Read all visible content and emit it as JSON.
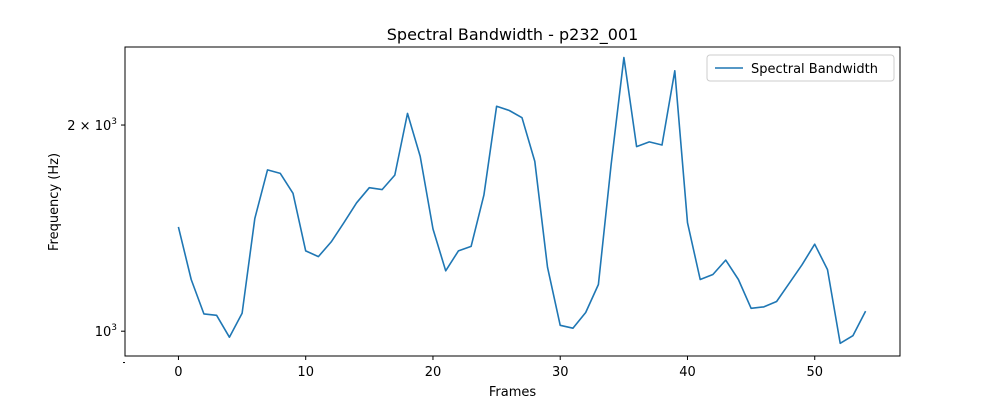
{
  "chart_data": {
    "type": "line",
    "title": "Spectral Bandwidth - p232_001",
    "xlabel": "Frames",
    "ylabel": "Frequency (Hz)",
    "y_scale": "log",
    "xlim": [
      -4.2,
      56.7
    ],
    "ylim": [
      920,
      2600
    ],
    "x_ticks": [
      0,
      10,
      20,
      30,
      40,
      50
    ],
    "x_tick_labels": [
      "0",
      "10",
      "20",
      "30",
      "40",
      "50"
    ],
    "y_major_ticks": [
      1000,
      2000
    ],
    "y_tick_labels": {
      "base": "10",
      "exponent": "3",
      "mantissa_2000": "2 × "
    },
    "y_minor_ticks": [
      900
    ],
    "legend_position": "top-right",
    "grid": false,
    "series": [
      {
        "name": "Spectral Bandwidth",
        "color": "#1f77b4",
        "x": [
          0,
          1,
          2,
          3,
          4,
          5,
          6,
          7,
          8,
          9,
          10,
          11,
          12,
          13,
          14,
          15,
          16,
          17,
          18,
          19,
          20,
          21,
          22,
          23,
          24,
          25,
          26,
          27,
          28,
          29,
          30,
          31,
          32,
          33,
          34,
          35,
          36,
          37,
          38,
          39,
          40,
          41,
          42,
          43,
          44,
          45,
          46,
          47,
          48,
          49,
          50,
          51,
          52,
          53,
          54
        ],
        "values": [
          1420,
          1190,
          1060,
          1055,
          980,
          1062,
          1460,
          1720,
          1700,
          1590,
          1310,
          1285,
          1350,
          1440,
          1540,
          1620,
          1610,
          1690,
          2080,
          1800,
          1410,
          1225,
          1310,
          1330,
          1580,
          2130,
          2100,
          2050,
          1770,
          1240,
          1020,
          1010,
          1065,
          1170,
          1750,
          2510,
          1860,
          1890,
          1870,
          2400,
          1440,
          1190,
          1210,
          1270,
          1190,
          1080,
          1085,
          1105,
          1175,
          1250,
          1340,
          1230,
          960,
          985,
          1070
        ]
      }
    ]
  }
}
